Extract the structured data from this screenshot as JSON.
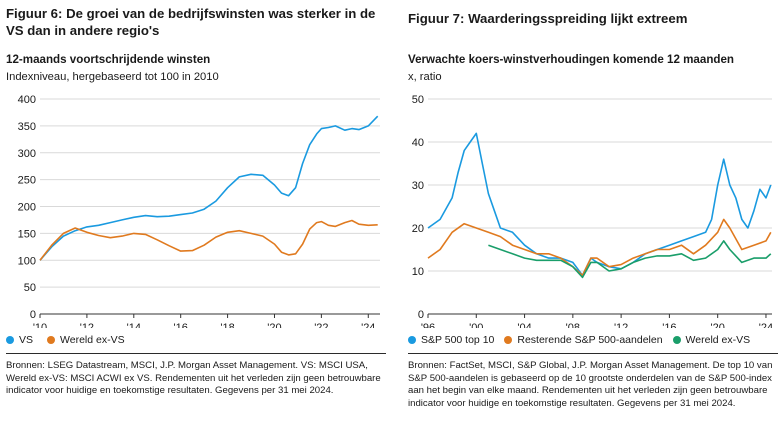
{
  "figure6": {
    "title": "Figuur 6: De groei van de bedrijfswinsten was sterker in de VS dan in andere regio's",
    "subtitle": "12-maands voortschrijdende winsten",
    "unit": "Indexniveau, hergebaseerd tot 100 in 2010",
    "source": "Bronnen: LSEG Datastream, MSCI, J.P. Morgan Asset Management. VS: MSCI USA, Wereld ex-VS: MSCI ACWI ex VS. Rendementen uit het verleden zijn geen betrouwbare indicator voor huidige en toekomstige resultaten. Gegevens per 31 mei 2024."
  },
  "figure7": {
    "title": "Figuur 7: Waarderingsspreiding lijkt extreem",
    "subtitle": "Verwachte koers-winstverhoudingen komende 12 maanden",
    "unit": "x, ratio",
    "source": "Bronnen: FactSet, MSCI, S&P Global, J.P. Morgan Asset Management. De top 10 van S&P 500-aandelen is gebaseerd op de 10 grootste onderdelen van de S&P 500-index aan het begin van elke maand. Rendementen uit het verleden zijn geen betrouwbare indicator voor huidige en toekomstige resultaten. Gegevens per 31 mei 2024."
  },
  "colors": {
    "blue": "#1a9ae0",
    "orange": "#e07a1f",
    "green": "#1a9e6a",
    "grid": "#d9d9d9"
  },
  "chart_data": [
    {
      "type": "line",
      "ylim": [
        0,
        400
      ],
      "yticks": [
        0,
        50,
        100,
        150,
        200,
        250,
        300,
        350,
        400
      ],
      "xlim": [
        2010,
        2024.5
      ],
      "xticks": [
        2010,
        2012,
        2014,
        2016,
        2018,
        2020,
        2022,
        2024
      ],
      "xtick_labels": [
        "'10",
        "'12",
        "'14",
        "'16",
        "'18",
        "'20",
        "'22",
        "'24"
      ],
      "legend_position": "bottom-left",
      "series": [
        {
          "name": "VS",
          "color": "#1a9ae0",
          "x": [
            2010,
            2010.5,
            2011,
            2011.5,
            2012,
            2012.5,
            2013,
            2013.5,
            2014,
            2014.5,
            2015,
            2015.5,
            2016,
            2016.5,
            2017,
            2017.5,
            2018,
            2018.5,
            2019,
            2019.5,
            2020,
            2020.3,
            2020.6,
            2020.9,
            2021.2,
            2021.5,
            2021.8,
            2022,
            2022.3,
            2022.6,
            2023,
            2023.3,
            2023.6,
            2024,
            2024.4
          ],
          "y": [
            100,
            125,
            145,
            155,
            162,
            165,
            170,
            175,
            180,
            183,
            181,
            182,
            185,
            188,
            195,
            210,
            235,
            255,
            260,
            258,
            240,
            225,
            220,
            235,
            280,
            315,
            335,
            345,
            347,
            350,
            342,
            345,
            343,
            350,
            368
          ]
        },
        {
          "name": "Wereld ex-VS",
          "color": "#e07a1f",
          "x": [
            2010,
            2010.5,
            2011,
            2011.5,
            2012,
            2012.5,
            2013,
            2013.5,
            2014,
            2014.5,
            2015,
            2015.5,
            2016,
            2016.5,
            2017,
            2017.5,
            2018,
            2018.5,
            2019,
            2019.5,
            2020,
            2020.3,
            2020.6,
            2020.9,
            2021.2,
            2021.5,
            2021.8,
            2022,
            2022.3,
            2022.6,
            2023,
            2023.3,
            2023.6,
            2024,
            2024.4
          ],
          "y": [
            100,
            128,
            150,
            160,
            152,
            146,
            142,
            145,
            150,
            148,
            138,
            127,
            117,
            118,
            128,
            143,
            152,
            155,
            150,
            145,
            130,
            115,
            110,
            112,
            130,
            158,
            170,
            172,
            165,
            163,
            170,
            174,
            167,
            165,
            166
          ]
        }
      ]
    },
    {
      "type": "line",
      "ylim": [
        0,
        50
      ],
      "yticks": [
        0,
        10,
        20,
        30,
        40,
        50
      ],
      "xlim": [
        1996,
        2024.5
      ],
      "xticks": [
        1996,
        2000,
        2004,
        2008,
        2012,
        2016,
        2020,
        2024
      ],
      "xtick_labels": [
        "'96",
        "'00",
        "'04",
        "'08",
        "'12",
        "'16",
        "'20",
        "'24"
      ],
      "legend_position": "bottom",
      "series": [
        {
          "name": "S&P 500 top 10",
          "color": "#1a9ae0",
          "x": [
            1996,
            1997,
            1998,
            1998.5,
            1999,
            1999.5,
            2000,
            2000.5,
            2001,
            2001.5,
            2002,
            2003,
            2004,
            2005,
            2006,
            2007,
            2008,
            2008.8,
            2009.5,
            2010,
            2011,
            2012,
            2013,
            2014,
            2015,
            2016,
            2017,
            2018,
            2019,
            2019.5,
            2020,
            2020.5,
            2021,
            2021.5,
            2022,
            2022.5,
            2023,
            2023.5,
            2024,
            2024.4
          ],
          "y": [
            20,
            22,
            27,
            33,
            38,
            40,
            42,
            35,
            28,
            24,
            20,
            19,
            16,
            14,
            13,
            13,
            12,
            9,
            13,
            12,
            11,
            10.5,
            12,
            14,
            15,
            16,
            17,
            18,
            19,
            22,
            30,
            36,
            30,
            27,
            22,
            20,
            24,
            29,
            27,
            30
          ]
        },
        {
          "name": "Resterende S&P 500-aandelen",
          "color": "#e07a1f",
          "x": [
            1996,
            1997,
            1998,
            1999,
            2000,
            2001,
            2002,
            2003,
            2004,
            2005,
            2006,
            2007,
            2008,
            2008.8,
            2009.5,
            2010,
            2011,
            2012,
            2013,
            2014,
            2015,
            2016,
            2017,
            2018,
            2019,
            2020,
            2020.5,
            2021,
            2022,
            2023,
            2024,
            2024.4
          ],
          "y": [
            13,
            15,
            19,
            21,
            20,
            19,
            18,
            16,
            15,
            14,
            14,
            13,
            11,
            9,
            13,
            13,
            11,
            11.5,
            13,
            14,
            15,
            15,
            16,
            14,
            16,
            19,
            22,
            20,
            15,
            16,
            17,
            19
          ]
        },
        {
          "name": "Wereld ex-VS",
          "color": "#1a9e6a",
          "x": [
            2001,
            2002,
            2003,
            2004,
            2005,
            2006,
            2007,
            2008,
            2008.8,
            2009.5,
            2010,
            2011,
            2012,
            2013,
            2014,
            2015,
            2016,
            2017,
            2018,
            2019,
            2020,
            2020.5,
            2021,
            2022,
            2023,
            2024,
            2024.4
          ],
          "y": [
            16,
            15,
            14,
            13,
            12.5,
            12.5,
            12.5,
            11,
            8.5,
            12,
            12,
            10,
            10.5,
            12,
            13,
            13.5,
            13.5,
            14,
            12.5,
            13,
            15,
            17,
            15,
            12,
            13,
            13,
            14
          ]
        }
      ]
    }
  ]
}
